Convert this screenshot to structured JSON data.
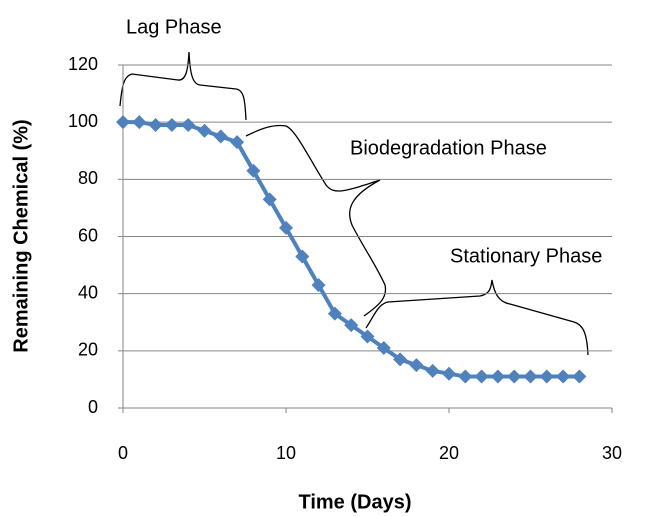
{
  "chart_data": {
    "type": "line",
    "xlabel": "Time (Days)",
    "ylabel": "Remaining Chemical (%)",
    "annotations": [
      "Lag Phase",
      "Biodegradation Phase",
      "Stationary Phase"
    ],
    "x": [
      0,
      1,
      2,
      3,
      4,
      5,
      6,
      7,
      8,
      9,
      10,
      11,
      12,
      13,
      14,
      15,
      16,
      17,
      18,
      19,
      20,
      21,
      22,
      23,
      24,
      25,
      26,
      27,
      28
    ],
    "values": [
      100,
      100,
      99,
      99,
      99,
      97,
      95,
      93,
      83,
      73,
      63,
      53,
      43,
      33,
      29,
      25,
      21,
      17,
      15,
      13,
      12,
      11,
      11,
      11,
      11,
      11,
      11,
      11,
      11
    ],
    "color": "#4f81bd",
    "xlim": [
      0,
      30
    ],
    "xticks": [
      0,
      10,
      20,
      30
    ],
    "ylim": [
      0,
      120
    ],
    "yticks": [
      0,
      20,
      40,
      60,
      80,
      100,
      120
    ],
    "grid": true
  }
}
